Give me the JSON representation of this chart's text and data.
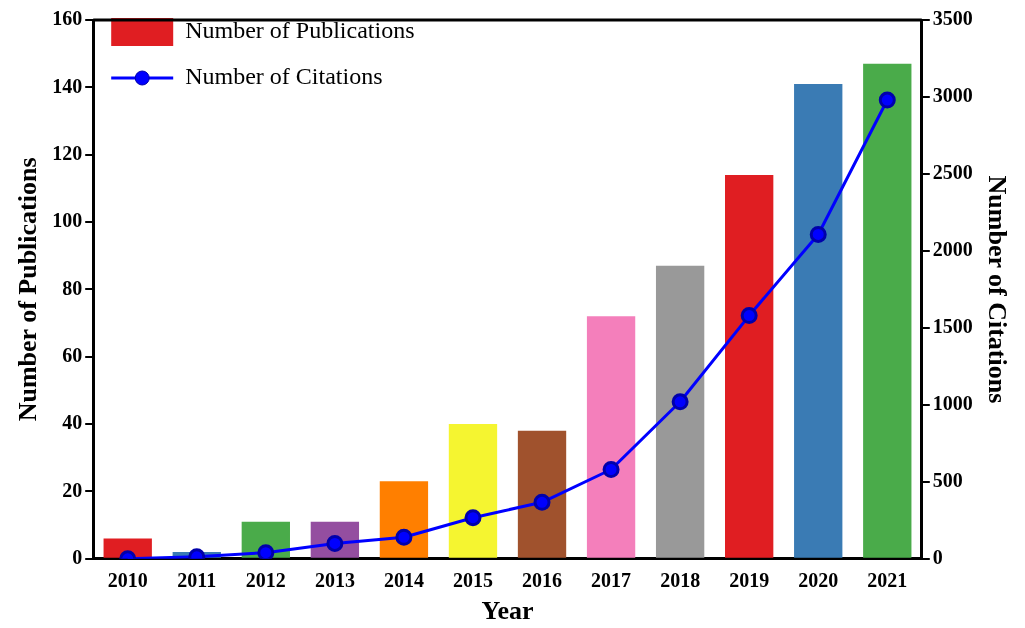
{
  "chart_data": {
    "type": "bar",
    "xlabel": "Year",
    "ylabel": "Number of Publications",
    "y2label": "Number of Citations",
    "categories": [
      "2010",
      "2011",
      "2012",
      "2013",
      "2014",
      "2015",
      "2016",
      "2017",
      "2018",
      "2019",
      "2020",
      "2021"
    ],
    "series": [
      {
        "name": "Number of Publications",
        "colors": [
          "#e01e22",
          "#3a7bb4",
          "#4aab4a",
          "#944ea0",
          "#ff7f00",
          "#f5f530",
          "#a0522d",
          "#f47fbb",
          "#999999",
          "#e01e22",
          "#3a7bb4",
          "#4aab4a"
        ],
        "values": [
          6,
          2,
          11,
          11,
          23,
          40,
          38,
          72,
          87,
          114,
          141,
          147
        ]
      },
      {
        "name": "Number of Citations",
        "type": "line",
        "axis": "y2",
        "color": "#0000ff",
        "marker": "circle",
        "values": [
          0,
          13,
          40,
          100,
          140,
          267,
          367,
          580,
          1020,
          1580,
          2107,
          2980
        ]
      }
    ],
    "ylim": [
      0,
      160
    ],
    "yticks": [
      0,
      20,
      40,
      60,
      80,
      100,
      120,
      140,
      160
    ],
    "y2lim": [
      0,
      3500
    ],
    "y2ticks": [
      0,
      500,
      1000,
      1500,
      2000,
      2500,
      3000,
      3500
    ],
    "grid": false,
    "legend": "top left"
  }
}
